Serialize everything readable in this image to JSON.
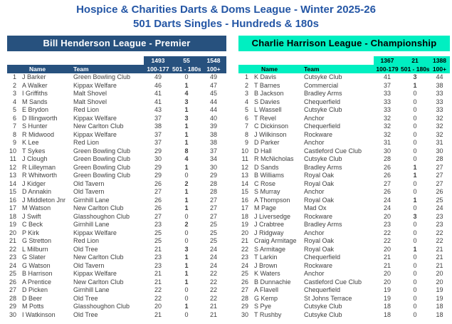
{
  "title": {
    "line1": "Hospice & Charities Darts & Doms League - Winter 2025-26",
    "line2": "501 Darts Singles - Hundreds & 180s"
  },
  "colors": {
    "title_text": "#2456A5",
    "body_text": "#3F3F3F",
    "premier_header_bg": "#27517E",
    "premier_header_text": "#FFFFFF",
    "championship_header_bg": "#00EFC1",
    "championship_header_text": "#000000"
  },
  "leagues": [
    {
      "name": "Bill Henderson League - Premier",
      "totals": {
        "hundreds": "1493",
        "one_eighties": "55",
        "total": "1548"
      },
      "columns": {
        "rank": "",
        "name": "Name",
        "team": "Team",
        "hundreds": "100-177",
        "one_eighties": "501 - 180s",
        "total": "100+"
      },
      "rows": [
        {
          "rank": 1,
          "name": "J Barker",
          "team": "Green Bowling Club",
          "hundreds": 49,
          "one_eighties": 0,
          "total": 49
        },
        {
          "rank": 2,
          "name": "A Walker",
          "team": "Kippax Welfare",
          "hundreds": 46,
          "one_eighties": 1,
          "total": 47
        },
        {
          "rank": 3,
          "name": "I Griffiths",
          "team": "Malt Shovel",
          "hundreds": 41,
          "one_eighties": 4,
          "total": 45
        },
        {
          "rank": 4,
          "name": "M Sands",
          "team": "Malt Shovel",
          "hundreds": 41,
          "one_eighties": 3,
          "total": 44
        },
        {
          "rank": 5,
          "name": "E Brydon",
          "team": "Red Lion",
          "hundreds": 43,
          "one_eighties": 1,
          "total": 44
        },
        {
          "rank": 6,
          "name": "D Illingworth",
          "team": "Kippax Welfare",
          "hundreds": 37,
          "one_eighties": 3,
          "total": 40
        },
        {
          "rank": 7,
          "name": "S Hunter",
          "team": "New Carlton Club",
          "hundreds": 38,
          "one_eighties": 1,
          "total": 39
        },
        {
          "rank": 8,
          "name": "R Midwood",
          "team": "Kippax Welfare",
          "hundreds": 37,
          "one_eighties": 1,
          "total": 38
        },
        {
          "rank": 9,
          "name": "K Lee",
          "team": "Red Lion",
          "hundreds": 37,
          "one_eighties": 1,
          "total": 38
        },
        {
          "rank": 10,
          "name": "T Sykes",
          "team": "Green Bowling Club",
          "hundreds": 29,
          "one_eighties": 8,
          "total": 37
        },
        {
          "rank": 11,
          "name": "J Clough",
          "team": "Green Bowling Club",
          "hundreds": 30,
          "one_eighties": 4,
          "total": 34
        },
        {
          "rank": 12,
          "name": "R Lilleyman",
          "team": "Green Bowling Club",
          "hundreds": 29,
          "one_eighties": 1,
          "total": 30
        },
        {
          "rank": 13,
          "name": "R Whitworth",
          "team": "Green Bowling Club",
          "hundreds": 29,
          "one_eighties": 0,
          "total": 29
        },
        {
          "rank": 14,
          "name": "J Kidger",
          "team": "Old Tavern",
          "hundreds": 26,
          "one_eighties": 2,
          "total": 28
        },
        {
          "rank": 15,
          "name": "D Annakin",
          "team": "Old Tavern",
          "hundreds": 27,
          "one_eighties": 1,
          "total": 28
        },
        {
          "rank": 16,
          "name": "J Middleton Jnr",
          "team": "Girnhill Lane",
          "hundreds": 26,
          "one_eighties": 1,
          "total": 27
        },
        {
          "rank": 17,
          "name": "M Watson",
          "team": "New Carlton Club",
          "hundreds": 26,
          "one_eighties": 1,
          "total": 27
        },
        {
          "rank": 18,
          "name": "J Swift",
          "team": "Glasshoughon Club",
          "hundreds": 27,
          "one_eighties": 0,
          "total": 27
        },
        {
          "rank": 19,
          "name": "C Beck",
          "team": "Girnhill Lane",
          "hundreds": 23,
          "one_eighties": 2,
          "total": 25
        },
        {
          "rank": 20,
          "name": "P Kirk",
          "team": "Kippax Welfare",
          "hundreds": 25,
          "one_eighties": 0,
          "total": 25
        },
        {
          "rank": 21,
          "name": "G Stretton",
          "team": "Red Lion",
          "hundreds": 25,
          "one_eighties": 0,
          "total": 25
        },
        {
          "rank": 22,
          "name": "L Milburn",
          "team": "Old Tree",
          "hundreds": 21,
          "one_eighties": 3,
          "total": 24
        },
        {
          "rank": 23,
          "name": "G Slater",
          "team": "New Carlton Club",
          "hundreds": 23,
          "one_eighties": 1,
          "total": 24
        },
        {
          "rank": 24,
          "name": "G Watson",
          "team": "Old Tavern",
          "hundreds": 23,
          "one_eighties": 1,
          "total": 24
        },
        {
          "rank": 25,
          "name": "B Harrison",
          "team": "Kippax Welfare",
          "hundreds": 21,
          "one_eighties": 1,
          "total": 22
        },
        {
          "rank": 26,
          "name": "A Prentice",
          "team": "New Carlton Club",
          "hundreds": 21,
          "one_eighties": 1,
          "total": 22
        },
        {
          "rank": 27,
          "name": "D Picken",
          "team": "Girnhill Lane",
          "hundreds": 22,
          "one_eighties": 0,
          "total": 22
        },
        {
          "rank": 28,
          "name": "D Beer",
          "team": "Old Tree",
          "hundreds": 22,
          "one_eighties": 0,
          "total": 22
        },
        {
          "rank": 29,
          "name": "M Potts",
          "team": "Glasshoughon Club",
          "hundreds": 20,
          "one_eighties": 1,
          "total": 21
        },
        {
          "rank": 30,
          "name": "I Watkinson",
          "team": "Old Tree",
          "hundreds": 21,
          "one_eighties": 0,
          "total": 21
        }
      ]
    },
    {
      "name": "Charlie Harrison League - Championship",
      "totals": {
        "hundreds": "1367",
        "one_eighties": "21",
        "total": "1388"
      },
      "columns": {
        "rank": "",
        "name": "Name",
        "team": "Team",
        "hundreds": "100-179",
        "one_eighties": "501 - 180s",
        "total": "100+"
      },
      "rows": [
        {
          "rank": 1,
          "name": "K Davis",
          "team": "Cutsyke Club",
          "hundreds": 41,
          "one_eighties": 3,
          "total": 44
        },
        {
          "rank": 2,
          "name": "T Barnes",
          "team": "Commercial",
          "hundreds": 37,
          "one_eighties": 1,
          "total": 38
        },
        {
          "rank": 3,
          "name": "B Jackson",
          "team": "Bradley Arms",
          "hundreds": 33,
          "one_eighties": 0,
          "total": 33
        },
        {
          "rank": 4,
          "name": "S Davies",
          "team": "Chequerfield",
          "hundreds": 33,
          "one_eighties": 0,
          "total": 33
        },
        {
          "rank": 5,
          "name": "L Wassell",
          "team": "Cutsyke Club",
          "hundreds": 33,
          "one_eighties": 0,
          "total": 33
        },
        {
          "rank": 6,
          "name": "T Revel",
          "team": "Anchor",
          "hundreds": 32,
          "one_eighties": 0,
          "total": 32
        },
        {
          "rank": 7,
          "name": "C Dickinson",
          "team": "Chequerfield",
          "hundreds": 32,
          "one_eighties": 0,
          "total": 32
        },
        {
          "rank": 8,
          "name": "J Wilkinson",
          "team": "Rockware",
          "hundreds": 32,
          "one_eighties": 0,
          "total": 32
        },
        {
          "rank": 9,
          "name": "D Parker",
          "team": "Anchor",
          "hundreds": 31,
          "one_eighties": 0,
          "total": 31
        },
        {
          "rank": 10,
          "name": "D Hall",
          "team": "Castleford Cue Club",
          "hundreds": 30,
          "one_eighties": 0,
          "total": 30
        },
        {
          "rank": 11,
          "name": "R McNicholas",
          "team": "Cutsyke Club",
          "hundreds": 28,
          "one_eighties": 0,
          "total": 28
        },
        {
          "rank": 12,
          "name": "D Sands",
          "team": "Bradley Arms",
          "hundreds": 26,
          "one_eighties": 1,
          "total": 27
        },
        {
          "rank": 13,
          "name": "B Williams",
          "team": "Royal Oak",
          "hundreds": 26,
          "one_eighties": 1,
          "total": 27
        },
        {
          "rank": 14,
          "name": "C Rose",
          "team": "Royal Oak",
          "hundreds": 27,
          "one_eighties": 0,
          "total": 27
        },
        {
          "rank": 15,
          "name": "S Murray",
          "team": "Anchor",
          "hundreds": 26,
          "one_eighties": 0,
          "total": 26
        },
        {
          "rank": 16,
          "name": "A Thompson",
          "team": "Royal Oak",
          "hundreds": 24,
          "one_eighties": 1,
          "total": 25
        },
        {
          "rank": 17,
          "name": "M Page",
          "team": "Mad Ox",
          "hundreds": 24,
          "one_eighties": 0,
          "total": 24
        },
        {
          "rank": 18,
          "name": "J Liversedge",
          "team": "Rockware",
          "hundreds": 20,
          "one_eighties": 3,
          "total": 23
        },
        {
          "rank": 19,
          "name": "J Crabtree",
          "team": "Bradley Arms",
          "hundreds": 23,
          "one_eighties": 0,
          "total": 23
        },
        {
          "rank": 20,
          "name": "J Ridgway",
          "team": "Anchor",
          "hundreds": 22,
          "one_eighties": 0,
          "total": 22
        },
        {
          "rank": 21,
          "name": "Craig Armitage",
          "team": "Royal Oak",
          "hundreds": 22,
          "one_eighties": 0,
          "total": 22
        },
        {
          "rank": 22,
          "name": "S Armitage",
          "team": "Royal Oak",
          "hundreds": 20,
          "one_eighties": 1,
          "total": 21
        },
        {
          "rank": 23,
          "name": "T Larkin",
          "team": "Chequerfield",
          "hundreds": 21,
          "one_eighties": 0,
          "total": 21
        },
        {
          "rank": 24,
          "name": "J Brown",
          "team": "Rockware",
          "hundreds": 21,
          "one_eighties": 0,
          "total": 21
        },
        {
          "rank": 25,
          "name": "K Waters",
          "team": "Anchor",
          "hundreds": 20,
          "one_eighties": 0,
          "total": 20
        },
        {
          "rank": 26,
          "name": "B Dunnachie",
          "team": "Castleford Cue Club",
          "hundreds": 20,
          "one_eighties": 0,
          "total": 20
        },
        {
          "rank": 27,
          "name": "A Flavell",
          "team": "Chequerfield",
          "hundreds": 19,
          "one_eighties": 0,
          "total": 19
        },
        {
          "rank": 28,
          "name": "G Kemp",
          "team": "St Johns Terrace",
          "hundreds": 19,
          "one_eighties": 0,
          "total": 19
        },
        {
          "rank": 29,
          "name": "S Pye",
          "team": "Cutsyke Club",
          "hundreds": 18,
          "one_eighties": 0,
          "total": 18
        },
        {
          "rank": 30,
          "name": "T Rushby",
          "team": "Cutsyke Club",
          "hundreds": 18,
          "one_eighties": 0,
          "total": 18
        }
      ]
    }
  ]
}
